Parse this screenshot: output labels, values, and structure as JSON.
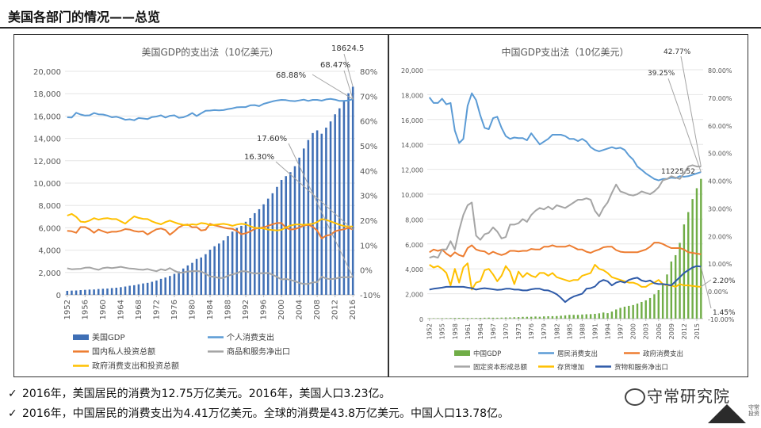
{
  "page": {
    "title": "美国各部门的情况——总览"
  },
  "notes": [
    {
      "check": "✓",
      "text": "2016年，美国居民的消费为12.75万亿美元。2016年，美国人口3.23亿。"
    },
    {
      "check": "✓",
      "text": "2016年，中国居民的消费支出为4.41万亿美元。全球的消费是43.8万亿美元。中国人口13.78亿。"
    }
  ],
  "watermark": {
    "text": "守常研究院",
    "seal": "守常投资"
  },
  "colors": {
    "blue": "#5b9bd5",
    "darkblue": "#2e5aa8",
    "orange": "#ed7d31",
    "gray": "#a5a5a5",
    "yellow": "#ffc000",
    "green": "#70ad47"
  },
  "chart_data": [
    {
      "type": "bar+line",
      "title": "美国GDP的支出法（10亿美元）",
      "ylim": [
        0,
        20000
      ],
      "y2lim": [
        -10,
        80
      ],
      "left_ticks": [
        "0",
        "2,000",
        "4,000",
        "6,000",
        "8,000",
        "10,000",
        "12,000",
        "14,000",
        "16,000",
        "18,000",
        "20,000"
      ],
      "right_ticks": [
        "-10%",
        "0%",
        "10%",
        "20%",
        "30%",
        "40%",
        "50%",
        "60%",
        "70%",
        "80%"
      ],
      "x_ticks": [
        "1952",
        "1956",
        "1960",
        "1964",
        "1968",
        "1972",
        "1976",
        "1980",
        "1984",
        "1988",
        "1992",
        "1996",
        "2000",
        "2004",
        "2008",
        "2012",
        "2016"
      ],
      "x_start": 1952,
      "x_end": 2016,
      "bar_series": {
        "name": "美国GDP",
        "values": [
          358,
          380,
          390,
          425,
          449,
          474,
          481,
          522,
          543,
          563,
          605,
          639,
          686,
          744,
          815,
          862,
          943,
          1020,
          1075,
          1168,
          1282,
          1429,
          1549,
          1689,
          1878,
          2086,
          2357,
          2632,
          2862,
          3211,
          3345,
          3638,
          4041,
          4347,
          4590,
          4870,
          5253,
          5658,
          5980,
          6174,
          6539,
          6879,
          7309,
          7664,
          8100,
          8609,
          9089,
          9661,
          10285,
          10622,
          10978,
          11511,
          12275,
          13094,
          13856,
          14478,
          14719,
          14419,
          14964,
          15518,
          16155,
          16692,
          17393,
          18036,
          18624
        ]
      },
      "line_series": [
        {
          "name": "个人消费支出",
          "axis": "right",
          "values": [
            61.5,
            61.4,
            63.3,
            62.6,
            62.2,
            62.3,
            63.2,
            62.7,
            62.6,
            62.2,
            61.5,
            61.7,
            61.2,
            60.5,
            60.7,
            60.3,
            61.2,
            61.0,
            60.8,
            61.6,
            61.8,
            62.3,
            61.4,
            62.1,
            62.3,
            61.3,
            61.5,
            62.2,
            63.2,
            62.0,
            63.1,
            64.1,
            64.2,
            64.4,
            64.3,
            64.4,
            64.8,
            65.1,
            65.5,
            65.6,
            65.6,
            66.3,
            66.4,
            66.0,
            66.9,
            67.4,
            67.9,
            68.3,
            68.5,
            68.4,
            68.1,
            68.0,
            68.3,
            68.6,
            68.1,
            68.5,
            68.5,
            68.2,
            68.7,
            68.9,
            68.6,
            68.1,
            68.1,
            68.3,
            68.8
          ]
        },
        {
          "name": "国内私人投资总额",
          "axis": "right",
          "values": [
            15.8,
            15.6,
            15.0,
            17.3,
            17.3,
            16.4,
            15.0,
            16.3,
            15.6,
            15.0,
            15.4,
            15.4,
            15.8,
            16.5,
            16.3,
            15.7,
            15.4,
            15.6,
            14.3,
            15.4,
            16.4,
            16.7,
            16.1,
            14.2,
            15.6,
            17.2,
            18.1,
            18.3,
            17.2,
            17.3,
            15.9,
            16.2,
            18.6,
            18.0,
            17.6,
            17.1,
            16.7,
            16.6,
            15.7,
            14.4,
            14.8,
            15.5,
            16.6,
            16.9,
            17.2,
            17.8,
            18.4,
            18.9,
            18.9,
            17.0,
            16.3,
            16.5,
            17.1,
            17.9,
            18.2,
            17.4,
            15.9,
            12.7,
            13.8,
            14.2,
            15.6,
            16.1,
            16.4,
            17.0,
            16.3
          ]
        },
        {
          "name": "商品和服务净出口",
          "axis": "right",
          "values": [
            0.7,
            0.3,
            0.4,
            0.5,
            0.9,
            1.0,
            0.5,
            0.1,
            0.8,
            1.0,
            0.8,
            1.0,
            1.3,
            0.9,
            0.6,
            0.5,
            0.2,
            0.1,
            0.4,
            -0.1,
            -0.5,
            0.3,
            -0.1,
            0.8,
            -0.3,
            -1.1,
            -1.0,
            -0.6,
            -0.5,
            -0.4,
            -0.6,
            -1.5,
            -2.6,
            -2.8,
            -3.2,
            -3.2,
            -2.3,
            -1.8,
            -1.3,
            -0.5,
            -0.5,
            -1.0,
            -1.4,
            -1.3,
            -1.3,
            -1.2,
            -1.9,
            -2.8,
            -3.8,
            -3.6,
            -4.0,
            -4.5,
            -5.2,
            -5.6,
            -5.6,
            -5.0,
            -4.9,
            -2.7,
            -3.4,
            -3.7,
            -3.5,
            -3.0,
            -2.9,
            -2.9,
            -2.8
          ]
        },
        {
          "name": "政府消费支出和投资总额",
          "axis": "right",
          "values": [
            21.9,
            22.6,
            21.4,
            19.5,
            19.3,
            19.9,
            20.9,
            20.3,
            20.7,
            20.9,
            20.5,
            20.5,
            19.6,
            18.7,
            20.2,
            21.6,
            21.0,
            20.6,
            20.5,
            19.6,
            18.9,
            18.4,
            19.3,
            19.9,
            19.2,
            18.6,
            18.2,
            18.1,
            18.4,
            18.2,
            18.9,
            18.7,
            18.1,
            18.2,
            18.4,
            18.6,
            18.3,
            17.8,
            18.3,
            18.6,
            18.4,
            17.6,
            17.0,
            16.9,
            16.7,
            16.3,
            16.1,
            15.9,
            16.2,
            17.1,
            17.9,
            18.3,
            18.3,
            18.2,
            18.4,
            18.6,
            19.3,
            20.5,
            20.2,
            19.6,
            18.9,
            18.2,
            17.7,
            17.5,
            17.5
          ]
        }
      ],
      "annotations": [
        "18624.5",
        "68.47%",
        "68.88%",
        "17.60%",
        "16.30%"
      ],
      "legend": [
        {
          "name": "美国GDP",
          "kind": "bar",
          "color": "#3f6fb5"
        },
        {
          "name": "个人消费支出",
          "kind": "line",
          "color": "#5b9bd5"
        },
        {
          "name": "国内私人投资总额",
          "kind": "line",
          "color": "#ed7d31"
        },
        {
          "name": "商品和服务净出口",
          "kind": "line",
          "color": "#a5a5a5"
        },
        {
          "name": "政府消费支出和投资总额",
          "kind": "line",
          "color": "#ffc000"
        }
      ]
    },
    {
      "type": "bar+line",
      "title": "中国GDP支出法（10亿美元）",
      "ylim": [
        0,
        20000
      ],
      "y2lim": [
        -10,
        80
      ],
      "left_ticks": [
        "0",
        "2,000",
        "4,000",
        "6,000",
        "8,000",
        "10,000",
        "12,000",
        "14,000",
        "16,000",
        "18,000",
        "20,000"
      ],
      "right_ticks": [
        "-10.00%",
        "0.00%",
        "10.00%",
        "20.00%",
        "30.00%",
        "40.00%",
        "50.00%",
        "60.00%",
        "70.00%",
        "80.00%"
      ],
      "x_ticks": [
        "1952",
        "1955",
        "1958",
        "1961",
        "1964",
        "1967",
        "1970",
        "1973",
        "1976",
        "1979",
        "1982",
        "1985",
        "1988",
        "1991",
        "1994",
        "1997",
        "2000",
        "2003",
        "2006",
        "2009",
        "2012",
        "2015"
      ],
      "x_start": 1952,
      "x_end": 2016,
      "bar_series": {
        "name": "中国GDP",
        "values": [
          30,
          34,
          36,
          38,
          42,
          47,
          54,
          59,
          62,
          52,
          50,
          54,
          64,
          72,
          80,
          74,
          72,
          80,
          92,
          98,
          110,
          120,
          140,
          145,
          150,
          170,
          150,
          178,
          190,
          195,
          205,
          230,
          260,
          305,
          300,
          300,
          330,
          350,
          360,
          385,
          425,
          490,
          440,
          565,
          735,
          865,
          960,
          1025,
          1090,
          1210,
          1340,
          1470,
          1660,
          1955,
          2290,
          2750,
          3550,
          4590,
          5100,
          6090,
          7570,
          8560,
          9610,
          10480,
          11230
        ]
      },
      "line_series": [
        {
          "name": "居民消费支出",
          "axis": "right",
          "values": [
            70.0,
            68.0,
            68.0,
            69.5,
            67.5,
            68.0,
            58.0,
            53.5,
            55.0,
            67.0,
            71.5,
            69.0,
            63.5,
            59.0,
            58.5,
            62.5,
            63.0,
            59.0,
            56.0,
            55.0,
            55.5,
            55.3,
            55.3,
            54.5,
            57.0,
            55.0,
            53.0,
            54.0,
            55.0,
            56.5,
            56.5,
            56.5,
            56.0,
            55.0,
            55.0,
            54.2,
            55.0,
            54.0,
            52.0,
            51.0,
            50.5,
            51.0,
            51.5,
            52.0,
            51.5,
            51.8,
            51.0,
            49.0,
            47.5,
            45.0,
            43.8,
            42.5,
            41.5,
            40.5,
            40.0,
            40.5,
            40.5,
            41.0,
            40.8,
            41.5,
            41.3,
            41.5,
            42.0,
            42.5,
            43.0
          ]
        },
        {
          "name": "政府消费支出",
          "axis": "right",
          "values": [
            14.0,
            15.0,
            14.5,
            15.0,
            13.5,
            12.5,
            14.0,
            13.0,
            12.5,
            15.5,
            16.5,
            15.0,
            14.5,
            14.3,
            13.3,
            14.2,
            13.5,
            13.0,
            13.5,
            14.5,
            14.5,
            14.3,
            14.5,
            14.5,
            15.2,
            15.0,
            15.0,
            16.0,
            16.0,
            16.5,
            16.0,
            16.0,
            16.0,
            16.5,
            15.8,
            15.0,
            15.0,
            14.2,
            13.8,
            14.5,
            15.0,
            15.8,
            16.0,
            16.0,
            14.8,
            14.2,
            14.0,
            14.0,
            14.0,
            14.0,
            14.5,
            15.0,
            16.0,
            17.5,
            17.5,
            17.0,
            16.2,
            15.5,
            15.5,
            15.5,
            15.0,
            14.0,
            13.8,
            13.5,
            13.3
          ]
        },
        {
          "name": "固定资本形成总额",
          "axis": "right",
          "values": [
            12.0,
            12.5,
            12.0,
            15.0,
            15.0,
            18.0,
            15.0,
            22.0,
            27.5,
            31.0,
            32.0,
            20.0,
            18.5,
            20.5,
            21.0,
            23.0,
            21.5,
            19.0,
            19.5,
            24.0,
            24.0,
            24.5,
            26.0,
            25.0,
            27.5,
            29.0,
            30.0,
            29.5,
            30.5,
            29.5,
            31.0,
            30.5,
            30.0,
            31.0,
            32.0,
            33.0,
            33.0,
            33.5,
            33.0,
            29.0,
            27.0,
            30.0,
            32.0,
            35.5,
            38.5,
            36.0,
            35.5,
            34.8,
            34.5,
            35.0,
            36.0,
            35.5,
            35.0,
            36.0,
            37.5,
            40.0,
            40.5,
            41.5,
            41.0,
            40.5,
            42.5,
            45.0,
            45.5,
            45.0,
            45.0
          ]
        },
        {
          "name": "存货增加",
          "axis": "right",
          "values": [
            9.5,
            8.5,
            9.0,
            8.0,
            6.5,
            2.0,
            8.0,
            3.0,
            8.5,
            10.0,
            0.5,
            3.0,
            3.5,
            7.5,
            8.0,
            6.0,
            3.5,
            5.5,
            9.0,
            7.0,
            2.5,
            7.0,
            5.0,
            6.5,
            5.5,
            5.0,
            6.5,
            6.5,
            5.5,
            6.5,
            5.0,
            4.5,
            4.0,
            3.5,
            4.0,
            4.0,
            5.5,
            6.0,
            6.5,
            9.5,
            8.0,
            7.5,
            6.5,
            5.0,
            4.5,
            4.0,
            3.5,
            3.0,
            3.0,
            2.5,
            1.5,
            1.5,
            2.5,
            3.0,
            4.0,
            2.5,
            2.0,
            2.0,
            1.5,
            2.5,
            2.0,
            2.0,
            1.8,
            1.6,
            1.5
          ]
        },
        {
          "name": "货物和服务净出口",
          "axis": "right",
          "values": [
            0.5,
            0.8,
            1.0,
            1.2,
            1.5,
            1.5,
            1.5,
            1.5,
            1.5,
            1.2,
            1.0,
            0.5,
            0.8,
            1.0,
            0.8,
            0.6,
            0.4,
            0.5,
            0.8,
            0.8,
            0.5,
            0.5,
            0.2,
            0.2,
            0.6,
            0.8,
            0.8,
            0.3,
            0.2,
            -0.4,
            -1.2,
            -2.5,
            -4.0,
            -2.8,
            -2.0,
            -1.5,
            -1.0,
            0.8,
            1.0,
            1.6,
            3.2,
            4.0,
            3.5,
            2.0,
            3.0,
            3.5,
            3.0,
            4.0,
            4.5,
            4.8,
            3.8,
            3.4,
            3.8,
            2.8,
            2.5,
            2.5,
            2.3,
            2.0,
            3.5,
            5.0,
            6.5,
            7.5,
            8.5,
            9.0,
            8.8
          ]
        }
      ],
      "annotations": [
        "11225.52",
        "42.77%",
        "39.25%",
        "2.20%",
        "1.45%"
      ],
      "legend": [
        {
          "name": "中国GDP",
          "kind": "bar",
          "color": "#70ad47"
        },
        {
          "name": "居民消费支出",
          "kind": "line",
          "color": "#5b9bd5"
        },
        {
          "name": "政府消费支出",
          "kind": "line",
          "color": "#ed7d31"
        },
        {
          "name": "固定资本形成总额",
          "kind": "line",
          "color": "#a5a5a5"
        },
        {
          "name": "存货增加",
          "kind": "line",
          "color": "#ffc000"
        },
        {
          "name": "货物和服务净出口",
          "kind": "line",
          "color": "#2e5aa8"
        }
      ]
    }
  ]
}
